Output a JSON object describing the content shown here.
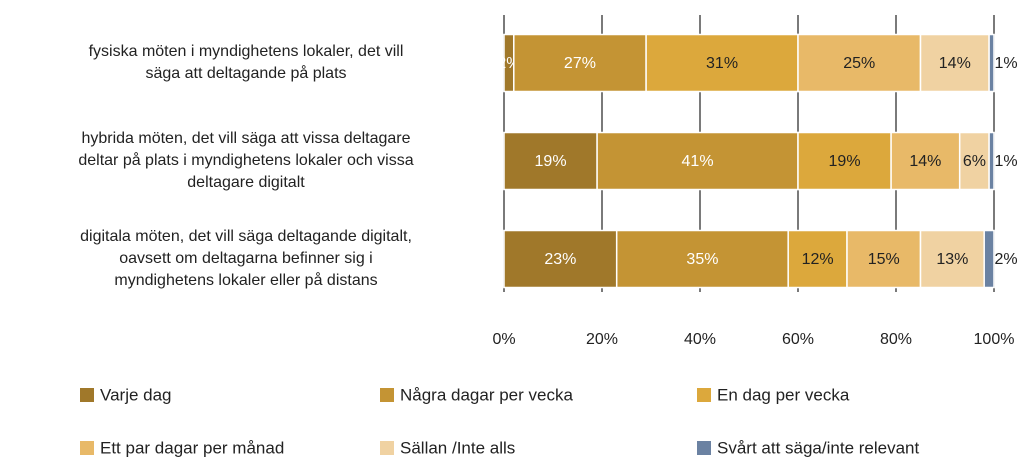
{
  "chart_data": {
    "type": "stacked_barh",
    "categories": [
      "fysiska möten i myndighetens lokaler, det vill\nsäga att deltagande på plats",
      "hybrida möten, det vill säga att vissa deltagare\ndeltar på plats  i myndighetens lokaler och vissa\ndeltagare digitalt",
      "digitala möten, det vill säga deltagande digitalt,\noavsett om deltagarna befinner sig i\nmyndighetens lokaler eller på distans"
    ],
    "series": [
      {
        "name": "Varje dag",
        "color": "#a0782a",
        "label_color": "#ffffff",
        "values": [
          2,
          19,
          23
        ],
        "value_labels": [
          "2%",
          "19%",
          "23%"
        ]
      },
      {
        "name": "Några dagar per vecka",
        "color": "#c49434",
        "label_color": "#ffffff",
        "values": [
          27,
          41,
          35
        ],
        "value_labels": [
          "27%",
          "41%",
          "35%"
        ]
      },
      {
        "name": "En dag per vecka",
        "color": "#dca83c",
        "label_color": "#222222",
        "values": [
          31,
          19,
          12
        ],
        "value_labels": [
          "31%",
          "19%",
          "12%"
        ]
      },
      {
        "name": "Ett par dagar per månad",
        "color": "#e8b968",
        "label_color": "#222222",
        "values": [
          25,
          14,
          15
        ],
        "value_labels": [
          "25%",
          "14%",
          "15%"
        ]
      },
      {
        "name": "Sällan /Inte alls",
        "color": "#f0d2a2",
        "label_color": "#222222",
        "values": [
          14,
          6,
          13
        ],
        "value_labels": [
          "14%",
          "6%",
          "13%"
        ]
      },
      {
        "name": "Svårt att säga/inte relevant",
        "color": "#6b82a2",
        "label_color": "#222222",
        "values": [
          1,
          1,
          2
        ],
        "value_labels": [
          "1%",
          "1%",
          "2%"
        ]
      }
    ],
    "xlim": [
      0,
      100
    ],
    "xticks": [
      {
        "value": 0,
        "label": "0%"
      },
      {
        "value": 20,
        "label": "20%"
      },
      {
        "value": 40,
        "label": "40%"
      },
      {
        "value": 60,
        "label": "60%"
      },
      {
        "value": 80,
        "label": "80%"
      },
      {
        "value": 100,
        "label": "100%"
      }
    ],
    "grid": true
  }
}
